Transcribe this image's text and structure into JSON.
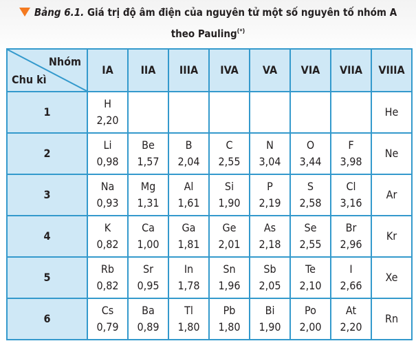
{
  "caption": {
    "label": "Bảng 6.1.",
    "text": "Giá trị độ âm điện của nguyên tử một số nguyên tố nhóm A",
    "line2": "theo Pauling",
    "sup": "(*)"
  },
  "table": {
    "corner_group": "Nhóm",
    "corner_period": "Chu kì",
    "groups": [
      "IA",
      "IIA",
      "IIIA",
      "IVA",
      "VA",
      "VIA",
      "VIIA",
      "VIIIA"
    ],
    "rows": [
      {
        "period": "1",
        "cells": [
          {
            "sym": "H",
            "en": "2,20"
          },
          {
            "sym": "",
            "en": ""
          },
          {
            "sym": "",
            "en": ""
          },
          {
            "sym": "",
            "en": ""
          },
          {
            "sym": "",
            "en": ""
          },
          {
            "sym": "",
            "en": ""
          },
          {
            "sym": "",
            "en": ""
          },
          {
            "sym": "He",
            "en": ""
          }
        ]
      },
      {
        "period": "2",
        "cells": [
          {
            "sym": "Li",
            "en": "0,98"
          },
          {
            "sym": "Be",
            "en": "1,57"
          },
          {
            "sym": "B",
            "en": "2,04"
          },
          {
            "sym": "C",
            "en": "2,55"
          },
          {
            "sym": "N",
            "en": "3,04"
          },
          {
            "sym": "O",
            "en": "3,44"
          },
          {
            "sym": "F",
            "en": "3,98"
          },
          {
            "sym": "Ne",
            "en": ""
          }
        ]
      },
      {
        "period": "3",
        "cells": [
          {
            "sym": "Na",
            "en": "0,93"
          },
          {
            "sym": "Mg",
            "en": "1,31"
          },
          {
            "sym": "Al",
            "en": "1,61"
          },
          {
            "sym": "Si",
            "en": "1,90"
          },
          {
            "sym": "P",
            "en": "2,19"
          },
          {
            "sym": "S",
            "en": "2,58"
          },
          {
            "sym": "Cl",
            "en": "3,16"
          },
          {
            "sym": "Ar",
            "en": ""
          }
        ]
      },
      {
        "period": "4",
        "cells": [
          {
            "sym": "K",
            "en": "0,82"
          },
          {
            "sym": "Ca",
            "en": "1,00"
          },
          {
            "sym": "Ga",
            "en": "1,81"
          },
          {
            "sym": "Ge",
            "en": "2,01"
          },
          {
            "sym": "As",
            "en": "2,18"
          },
          {
            "sym": "Se",
            "en": "2,55"
          },
          {
            "sym": "Br",
            "en": "2,96"
          },
          {
            "sym": "Kr",
            "en": ""
          }
        ]
      },
      {
        "period": "5",
        "cells": [
          {
            "sym": "Rb",
            "en": "0,82"
          },
          {
            "sym": "Sr",
            "en": "0,95"
          },
          {
            "sym": "In",
            "en": "1,78"
          },
          {
            "sym": "Sn",
            "en": "1,96"
          },
          {
            "sym": "Sb",
            "en": "2,05"
          },
          {
            "sym": "Te",
            "en": "2,10"
          },
          {
            "sym": "I",
            "en": "2,66"
          },
          {
            "sym": "Xe",
            "en": ""
          }
        ]
      },
      {
        "period": "6",
        "cells": [
          {
            "sym": "Cs",
            "en": "0,79"
          },
          {
            "sym": "Ba",
            "en": "0,89"
          },
          {
            "sym": "Tl",
            "en": "1,80"
          },
          {
            "sym": "Pb",
            "en": "1,80"
          },
          {
            "sym": "Bi",
            "en": "1,90"
          },
          {
            "sym": "Po",
            "en": "2,00"
          },
          {
            "sym": "At",
            "en": "2,20"
          },
          {
            "sym": "Rn",
            "en": ""
          }
        ]
      }
    ]
  },
  "colors": {
    "border": "#3399cc",
    "header_fill": "#cfe8f6",
    "accent": "#f47a20"
  }
}
